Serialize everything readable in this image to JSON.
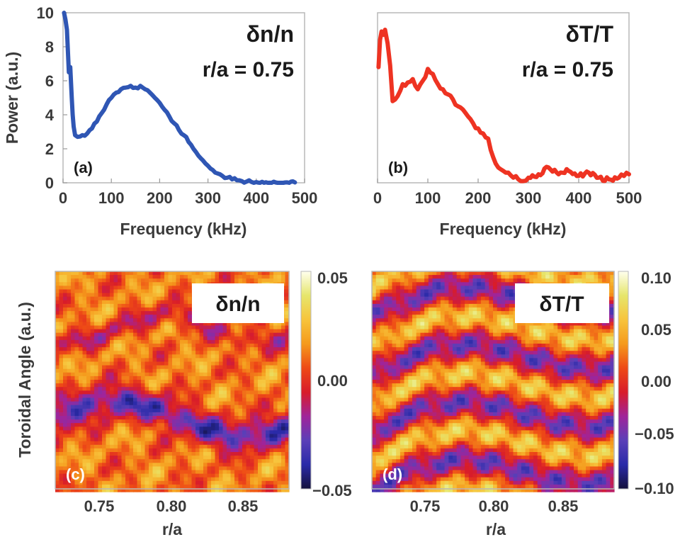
{
  "chart_data": [
    {
      "panel": "(a)",
      "type": "line",
      "annotation": [
        "δn/n",
        "r/a = 0.75"
      ],
      "xlabel": "Frequency (kHz)",
      "ylabel": "Power (a.u.)",
      "xlim": [
        0,
        500
      ],
      "ylim": [
        0,
        10
      ],
      "xticks": [
        "0",
        "100",
        "200",
        "300",
        "400",
        "500"
      ],
      "yticks": [
        "0",
        "2",
        "4",
        "6",
        "8",
        "10"
      ],
      "color": "#2f56b4",
      "x": [
        2,
        5,
        8,
        10,
        12,
        15,
        18,
        20,
        22,
        25,
        30,
        40,
        50,
        60,
        70,
        80,
        90,
        100,
        110,
        120,
        130,
        140,
        150,
        160,
        170,
        180,
        190,
        200,
        210,
        220,
        230,
        240,
        250,
        260,
        270,
        280,
        290,
        300,
        310,
        320,
        330,
        340,
        350,
        360,
        370,
        380,
        390,
        400,
        420,
        440,
        460,
        480
      ],
      "y": [
        10,
        9.6,
        9.0,
        7.8,
        6.5,
        6.8,
        5.0,
        4.0,
        3.3,
        2.8,
        2.7,
        2.8,
        2.9,
        3.2,
        3.6,
        4.1,
        4.6,
        5.0,
        5.3,
        5.5,
        5.6,
        5.7,
        5.6,
        5.7,
        5.5,
        5.3,
        5.0,
        4.7,
        4.3,
        3.9,
        3.5,
        3.1,
        2.8,
        2.4,
        2.0,
        1.6,
        1.3,
        1.0,
        0.75,
        0.55,
        0.4,
        0.3,
        0.2,
        0.15,
        0.1,
        0.07,
        0.05,
        0.04,
        0.03,
        0.02,
        0.02,
        0.02
      ]
    },
    {
      "panel": "(b)",
      "type": "line",
      "annotation": [
        "δT/T",
        "r/a = 0.75"
      ],
      "xlabel": "Frequency (kHz)",
      "xlim": [
        0,
        500
      ],
      "ylim": [
        0,
        10
      ],
      "xticks": [
        "0",
        "100",
        "200",
        "300",
        "400",
        "500"
      ],
      "color": "#ee3322",
      "x": [
        2,
        5,
        8,
        12,
        15,
        20,
        25,
        30,
        40,
        50,
        60,
        70,
        80,
        90,
        100,
        110,
        120,
        130,
        140,
        150,
        160,
        170,
        180,
        190,
        200,
        210,
        220,
        230,
        240,
        250,
        260,
        270,
        280,
        290,
        300,
        320,
        340,
        360,
        380,
        400,
        420,
        440,
        460,
        480,
        490,
        500
      ],
      "y": [
        6.8,
        8.4,
        8.9,
        8.7,
        9.0,
        8.2,
        6.9,
        4.8,
        5.1,
        5.8,
        5.9,
        6.1,
        5.5,
        6.0,
        6.7,
        6.4,
        5.8,
        5.5,
        5.2,
        4.9,
        4.5,
        4.3,
        3.9,
        3.5,
        3.2,
        2.9,
        2.6,
        1.5,
        0.9,
        0.7,
        0.6,
        0.3,
        0.2,
        0.1,
        0.3,
        0.5,
        0.9,
        0.5,
        0.7,
        0.4,
        0.6,
        0.3,
        0.2,
        0.3,
        0.4,
        0.5
      ]
    },
    {
      "panel": "(c)",
      "type": "heatmap",
      "annotation": "δn/n",
      "xlabel": "r/a",
      "ylabel": "Toroidal Angle (a.u.)",
      "xticks": [
        "0.75",
        "0.80",
        "0.85"
      ],
      "colorbar_ticks": [
        "0.05",
        "0.00",
        "−0.05"
      ]
    },
    {
      "panel": "(d)",
      "type": "heatmap",
      "annotation": "δT/T",
      "xlabel": "r/a",
      "xticks": [
        "0.75",
        "0.80",
        "0.85"
      ],
      "colorbar_ticks": [
        "0.10",
        "0.05",
        "0.00",
        "−0.05",
        "−0.10"
      ]
    }
  ],
  "colors": {
    "line_a": "#2f56b4",
    "line_b": "#ee3322",
    "colormap": [
      "#14113c",
      "#2a2aa8",
      "#5a3fb8",
      "#a0249a",
      "#d81c2a",
      "#ee4a16",
      "#f59a1c",
      "#f7c43c",
      "#e6e66c",
      "#ffffee"
    ]
  }
}
